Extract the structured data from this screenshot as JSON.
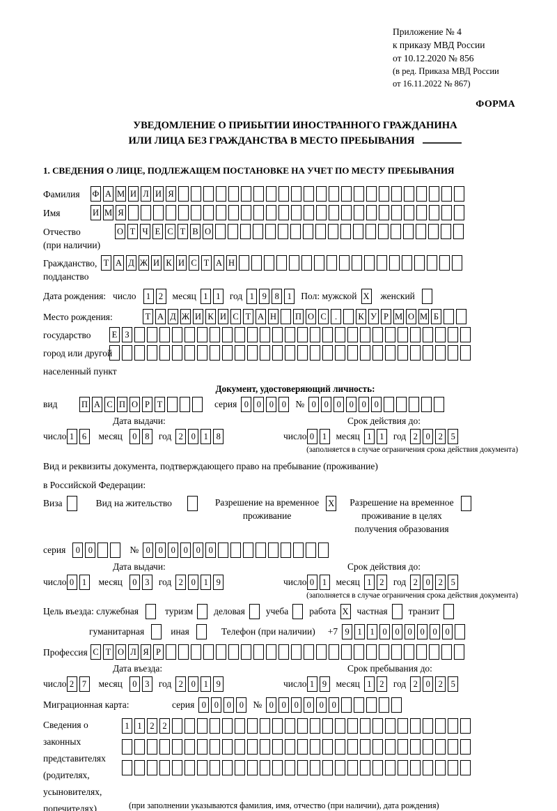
{
  "header": {
    "lines": [
      "Приложение № 4",
      "к приказу МВД России",
      "от 10.12.2020 № 856"
    ],
    "small_lines": [
      "(в ред. Приказа МВД России",
      "от 16.11.2022 № 867)"
    ],
    "form_label": "ФОРМА"
  },
  "title": {
    "line1": "УВЕДОМЛЕНИЕ О ПРИБЫТИИ ИНОСТРАННОГО ГРАЖДАНИНА",
    "line2": "ИЛИ ЛИЦА БЕЗ ГРАЖДАНСТВА В МЕСТО ПРЕБЫВАНИЯ"
  },
  "section1": {
    "heading": "1. СВЕДЕНИЯ О ЛИЦЕ, ПОДЛЕЖАЩЕМ ПОСТАНОВКЕ НА УЧЕТ ПО МЕСТУ ПРЕБЫВАНИЯ"
  },
  "person": {
    "surname": {
      "label": "Фамилия",
      "value": "ФАМИЛИЯ",
      "count": 30
    },
    "given_name": {
      "label": "Имя",
      "value": "ИМЯ",
      "count": 30
    },
    "patronymic": {
      "label": "Отчество",
      "label2": "(при наличии)",
      "value": "ОТЧЕСТВО",
      "count": 28
    },
    "citizenship": {
      "label": "Гражданство,",
      "label2": "подданство",
      "value": "ТАДЖИКИСТАН",
      "count": 29
    },
    "birth_date": {
      "label": "Дата рождения:",
      "day_label": "число",
      "day": {
        "value": "12",
        "count": 2
      },
      "month_label": "месяц",
      "month": {
        "value": "11",
        "count": 2
      },
      "year_label": "год",
      "year": {
        "value": "1981",
        "count": 4
      }
    },
    "sex": {
      "male_label": "Пол: мужской",
      "male": {
        "value": "X",
        "count": 1
      },
      "female_label": "женский",
      "female": {
        "value": "",
        "count": 1
      }
    },
    "birth_place": {
      "label": "Место рождения:",
      "sublabels": [
        "государство",
        "город или другой",
        "населенный пункт"
      ],
      "row1": {
        "value": "ТАДЖИКИСТАН ПОС. КУРМОМБ",
        "count": 26
      },
      "row2": {
        "value": "ЕЗ",
        "count": 29
      },
      "row3": {
        "value": "",
        "count": 29
      }
    }
  },
  "identity_doc": {
    "heading": "Документ, удостоверяющий личность:",
    "kind_label": "вид",
    "kind": {
      "value": "ПАСПОРТ",
      "count": 10
    },
    "series_label": "серия",
    "series": {
      "value": "0000",
      "count": 4
    },
    "number_label": "№",
    "number": {
      "value": "000000",
      "count": 11
    },
    "issue": {
      "label": "Дата выдачи:",
      "day_label": "число",
      "day": {
        "value": "16",
        "count": 2
      },
      "month_label": "месяц",
      "month": {
        "value": "08",
        "count": 2
      },
      "year_label": "год",
      "year": {
        "value": "2018",
        "count": 4
      }
    },
    "expiry": {
      "label": "Срок действия до:",
      "day_label": "число",
      "day": {
        "value": "01",
        "count": 2
      },
      "month_label": "месяц",
      "month": {
        "value": "11",
        "count": 2
      },
      "year_label": "год",
      "year": {
        "value": "2025",
        "count": 4
      },
      "note": "(заполняется в случае ограничения срока действия документа)"
    }
  },
  "residence_doc": {
    "intro1": "Вид и реквизиты документа, подтверждающего право на пребывание (проживание)",
    "intro2": "в Российской Федерации:",
    "visa_label": "Виза",
    "visa": {
      "value": "",
      "count": 1
    },
    "permit_label": "Вид на жительство",
    "permit": {
      "value": "",
      "count": 1
    },
    "temp_label1": "Разрешение на временное",
    "temp_label2": "проживание",
    "temp": {
      "value": "X",
      "count": 1
    },
    "edu_label1": "Разрешение на временное",
    "edu_label2": "проживание в целях",
    "edu_label3": "получения образования",
    "edu": {
      "value": "",
      "count": 1
    },
    "series_label": "серия",
    "series": {
      "value": "00",
      "count": 4
    },
    "number_label": "№",
    "number": {
      "value": "000000",
      "count": 15
    },
    "issue": {
      "label": "Дата выдачи:",
      "day_label": "число",
      "day": {
        "value": "01",
        "count": 2
      },
      "month_label": "месяц",
      "month": {
        "value": "03",
        "count": 2
      },
      "year_label": "год",
      "year": {
        "value": "2019",
        "count": 4
      }
    },
    "expiry": {
      "label": "Срок действия до:",
      "day_label": "число",
      "day": {
        "value": "01",
        "count": 2
      },
      "month_label": "месяц",
      "month": {
        "value": "12",
        "count": 2
      },
      "year_label": "год",
      "year": {
        "value": "2025",
        "count": 4
      },
      "note": "(заполняется в случае ограничения срока действия документа)"
    }
  },
  "visit": {
    "purpose_label": "Цель въезда: служебная",
    "official": {
      "value": "",
      "count": 1
    },
    "tourism_label": "туризм",
    "tourism": {
      "value": "",
      "count": 1
    },
    "business_label": "деловая",
    "business": {
      "value": "",
      "count": 1
    },
    "study_label": "учеба",
    "study": {
      "value": "",
      "count": 1
    },
    "work_label": "работа",
    "work": {
      "value": "X",
      "count": 1
    },
    "private_label": "частная",
    "private": {
      "value": "",
      "count": 1
    },
    "transit_label": "транзит",
    "transit": {
      "value": "",
      "count": 1
    },
    "humanitarian_label": "гуманитарная",
    "humanitarian": {
      "value": "",
      "count": 1
    },
    "other_label": "иная",
    "other": {
      "value": "",
      "count": 1
    },
    "phone_label": "Телефон (при наличии)",
    "phone_prefix": "+7",
    "phone": {
      "value": "911000000",
      "count": 10
    }
  },
  "profession": {
    "label": "Профессия",
    "value": "СТОЛЯР",
    "count": 30
  },
  "entry": {
    "date_label": "Дата въезда:",
    "day_label": "число",
    "day": {
      "value": "27",
      "count": 2
    },
    "month_label": "месяц",
    "month": {
      "value": "03",
      "count": 2
    },
    "year_label": "год",
    "year": {
      "value": "2019",
      "count": 4
    },
    "stay_label": "Срок пребывания до:",
    "stay_day_label": "число",
    "stay_day": {
      "value": "19",
      "count": 2
    },
    "stay_month_label": "месяц",
    "stay_month": {
      "value": "12",
      "count": 2
    },
    "stay_year_label": "год",
    "stay_year": {
      "value": "2025",
      "count": 4
    }
  },
  "migration_card": {
    "label": "Миграционная карта:",
    "series_label": "серия",
    "series": {
      "value": "0000",
      "count": 4
    },
    "number_label": "№",
    "number": {
      "value": "000000",
      "count": 11
    }
  },
  "representatives": {
    "label_lines": [
      "Сведения о",
      "законных",
      "представителях",
      "(родителях,",
      "усыновителях,",
      "попечителях)"
    ],
    "row1": {
      "value": "1122",
      "count": 28
    },
    "row2": {
      "value": "",
      "count": 28
    },
    "row3": {
      "value": "",
      "count": 28
    },
    "footnote": "(при заполнении указываются фамилия, имя, отчество (при наличии), дата рождения)"
  }
}
